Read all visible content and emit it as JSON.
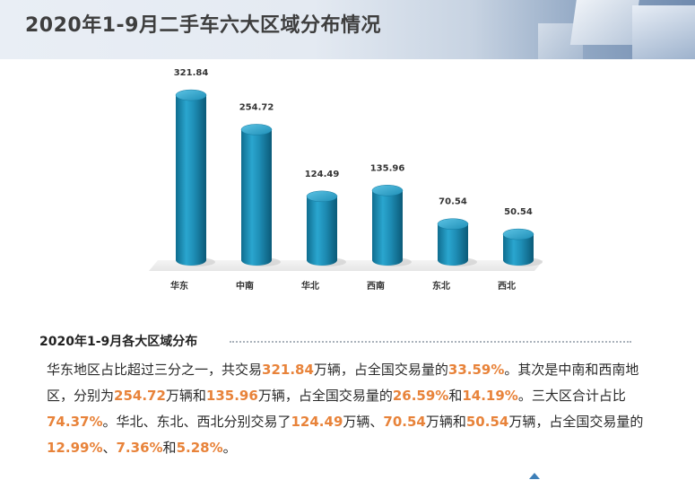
{
  "header": {
    "title": "2020年1-9月二手车六大区域分布情况"
  },
  "chart_data": {
    "type": "bar",
    "categories": [
      "华东",
      "中南",
      "华北",
      "西南",
      "东北",
      "西北"
    ],
    "values": [
      321.84,
      254.72,
      124.49,
      135.96,
      70.54,
      50.54
    ],
    "ylim": [
      0,
      350
    ],
    "grid": false,
    "legend": "none",
    "bar_color": "#1f8fb7"
  },
  "section": {
    "title": "2020年1-9月各大区域分布",
    "segments": [
      {
        "t": "华东地区占比超过三分之一，共交易",
        "h": false
      },
      {
        "t": "321.84",
        "h": true
      },
      {
        "t": "万辆，占全国交易量的",
        "h": false
      },
      {
        "t": "33.59%",
        "h": true
      },
      {
        "t": "。其次是中南和西南地区，分别为",
        "h": false
      },
      {
        "t": "254.72",
        "h": true
      },
      {
        "t": "万辆和",
        "h": false
      },
      {
        "t": "135.96",
        "h": true
      },
      {
        "t": "万辆，占全国交易量的",
        "h": false
      },
      {
        "t": "26.59%",
        "h": true
      },
      {
        "t": "和",
        "h": false
      },
      {
        "t": "14.19%",
        "h": true
      },
      {
        "t": "。三大区合计占比",
        "h": false
      },
      {
        "t": "74.37%",
        "h": true
      },
      {
        "t": "。华北、东北、西北分别交易了",
        "h": false
      },
      {
        "t": "124.49",
        "h": true
      },
      {
        "t": "万辆、",
        "h": false
      },
      {
        "t": "70.54",
        "h": true
      },
      {
        "t": "万辆和",
        "h": false
      },
      {
        "t": "50.54",
        "h": true
      },
      {
        "t": "万辆，占全国交易量的",
        "h": false
      },
      {
        "t": "12.99%",
        "h": true
      },
      {
        "t": "、",
        "h": false
      },
      {
        "t": "7.36%",
        "h": true
      },
      {
        "t": "和",
        "h": false
      },
      {
        "t": "5.28%",
        "h": true
      },
      {
        "t": "。",
        "h": false
      }
    ]
  },
  "colors": {
    "highlight": "#e8833a",
    "bar": "#1f8fb7"
  }
}
